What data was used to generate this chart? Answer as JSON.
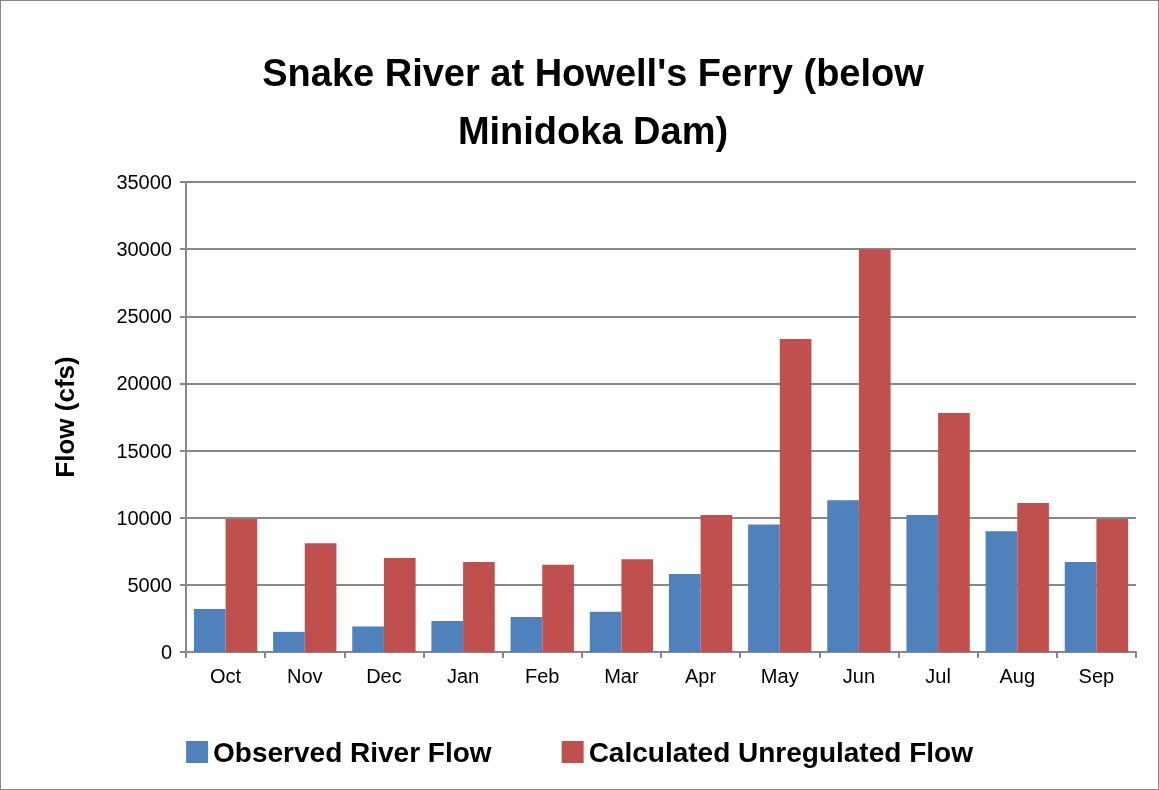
{
  "chart_data": {
    "type": "bar",
    "title": "Snake River at Howell's Ferry (below\nMinidoka Dam)",
    "ylabel": "Flow (cfs)",
    "categories": [
      "Oct",
      "Nov",
      "Dec",
      "Jan",
      "Feb",
      "Mar",
      "Apr",
      "May",
      "Jun",
      "Jul",
      "Aug",
      "Sep"
    ],
    "series": [
      {
        "name": "Observed River Flow",
        "color": "#4f81bd",
        "values": [
          3200,
          1500,
          1900,
          2300,
          2600,
          3000,
          5800,
          9500,
          11300,
          10200,
          9000,
          6700
        ]
      },
      {
        "name": "Calculated Unregulated Flow",
        "color": "#c0504d",
        "values": [
          9900,
          8100,
          7000,
          6700,
          6500,
          6900,
          10200,
          23300,
          30000,
          17800,
          11100,
          9900
        ]
      }
    ],
    "ylim": [
      0,
      35000
    ],
    "yticks": [
      0,
      5000,
      10000,
      15000,
      20000,
      25000,
      30000,
      35000
    ],
    "grid": "y",
    "legend": "bottom"
  }
}
